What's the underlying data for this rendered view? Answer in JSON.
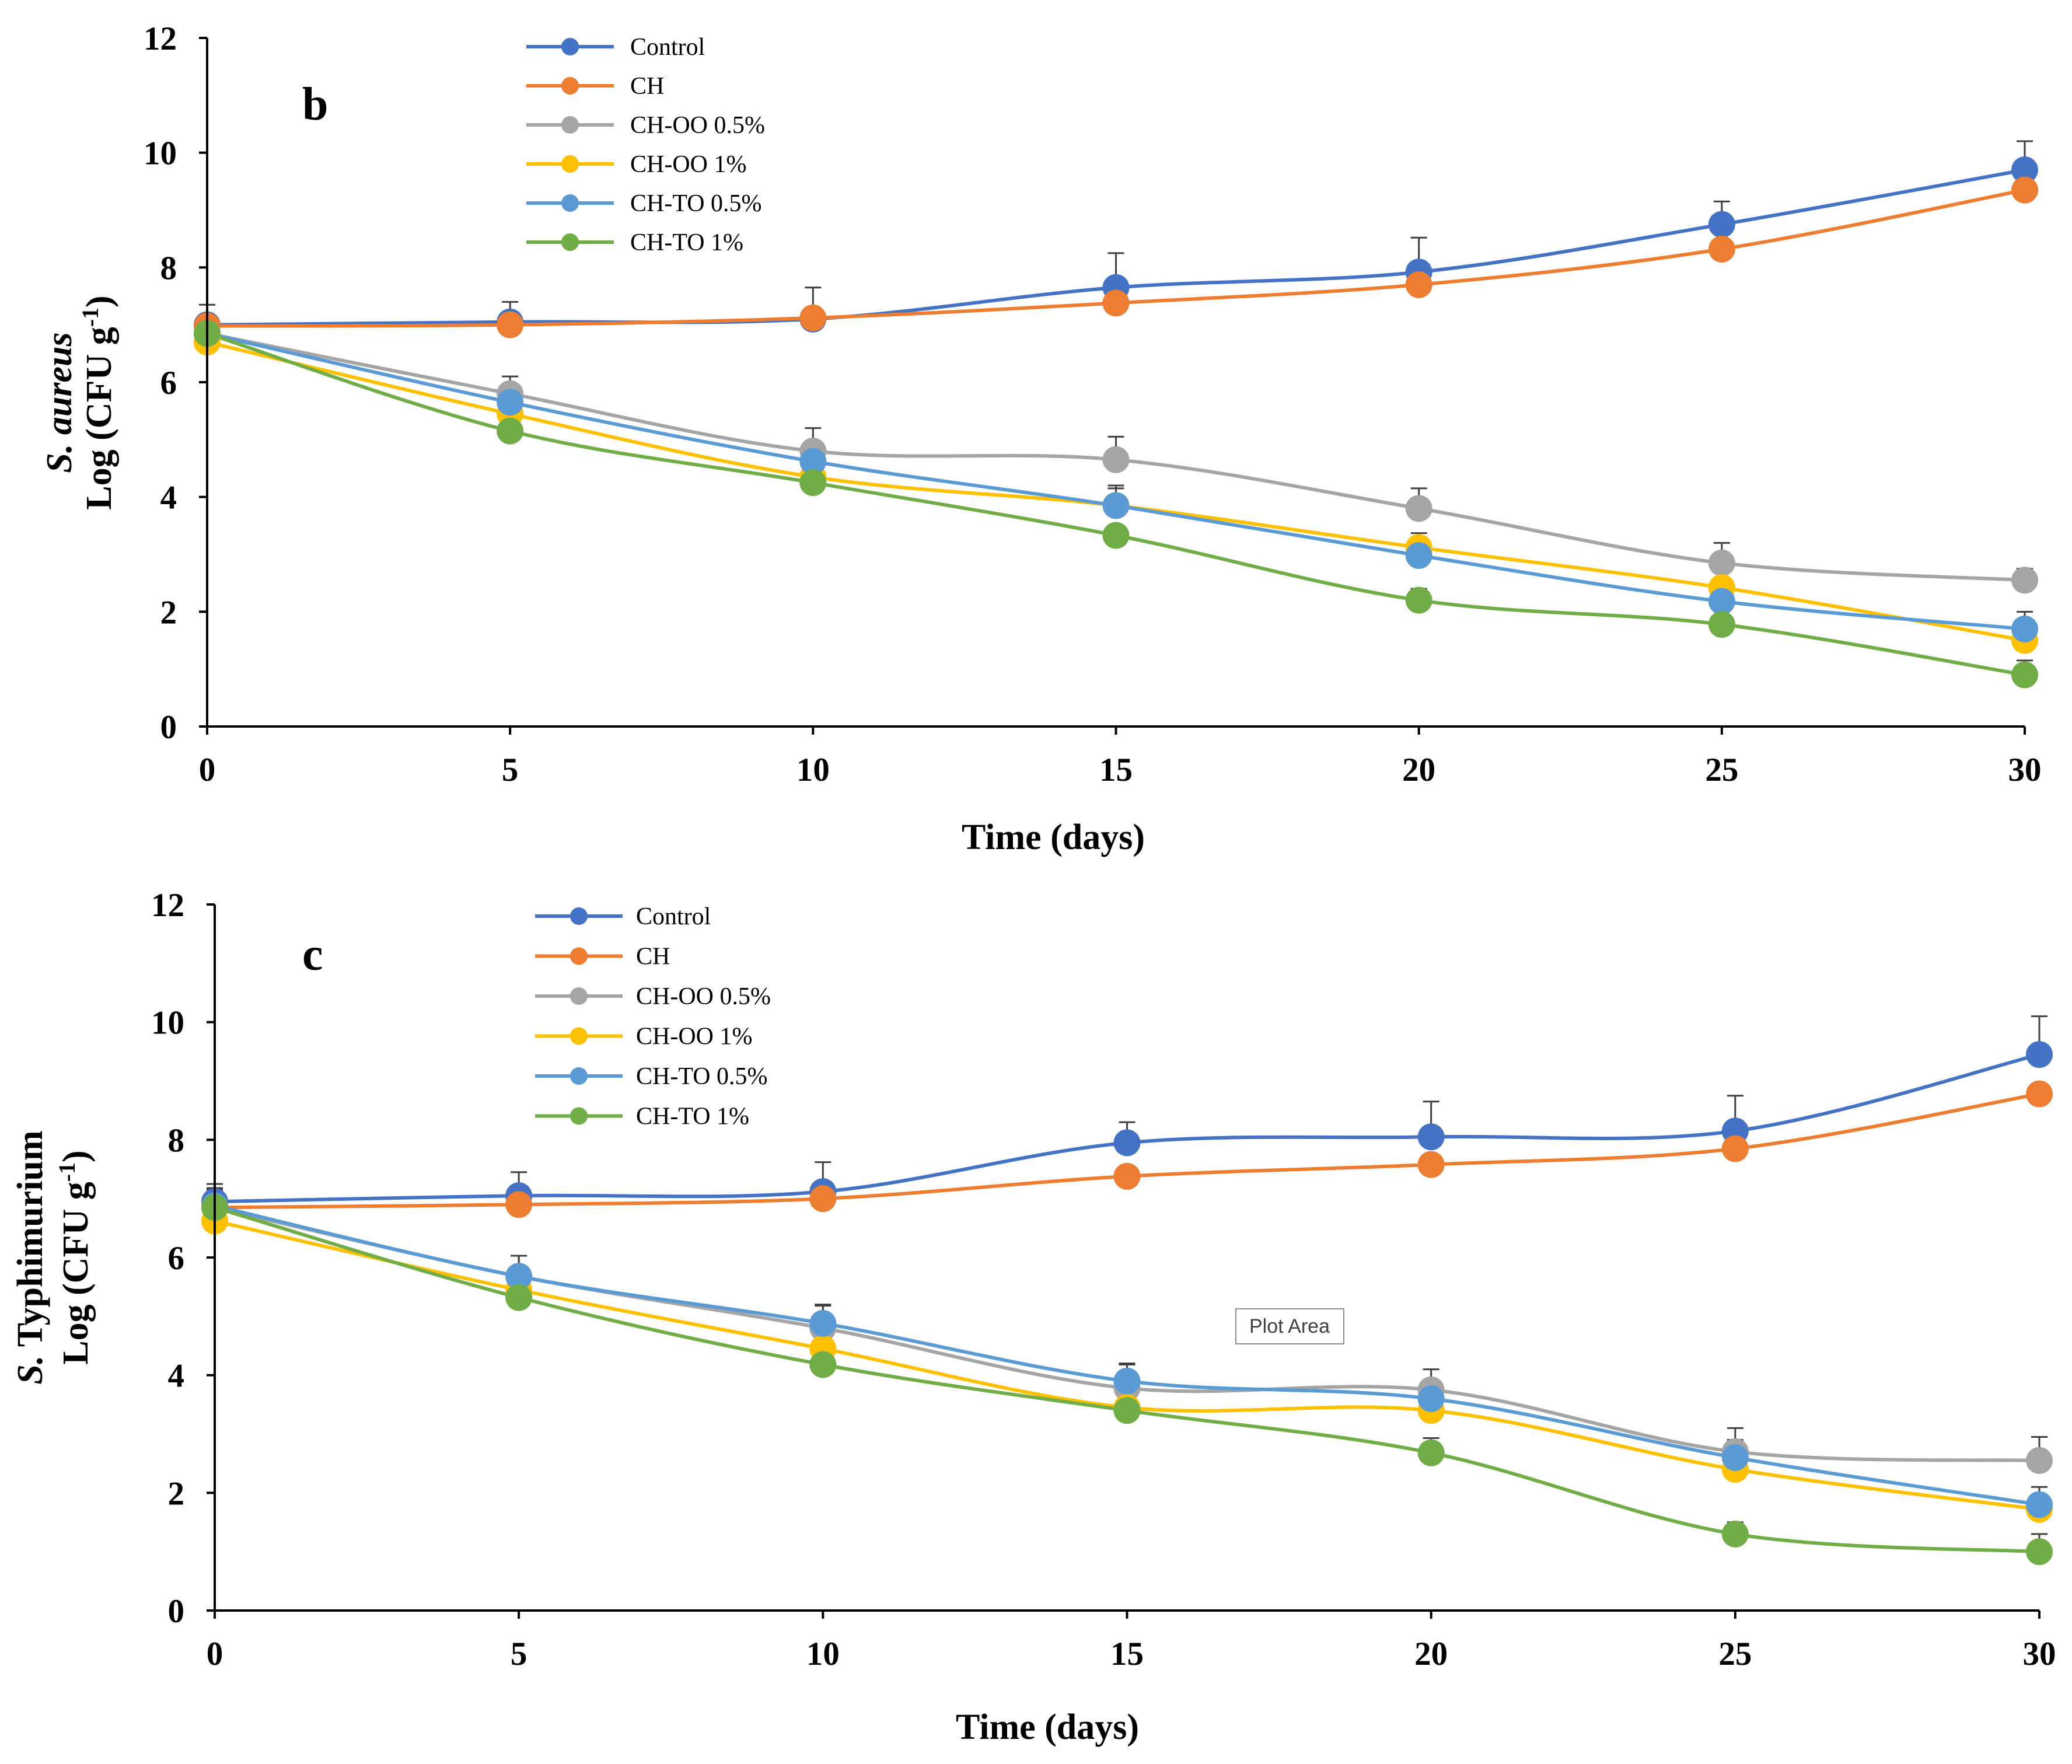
{
  "chart_data": [
    {
      "type": "line",
      "panel_label": "b",
      "title": "",
      "xlabel": "Time (days)",
      "ylabel_organism": "S. aureus",
      "ylabel_organism_italic": "S. aureus",
      "ylabel_organism_plain": "",
      "ylabel_units_main": "Log (CFU g",
      "ylabel_units_sup": "-1",
      "ylabel_units_end": ")",
      "x": [
        0,
        5,
        10,
        15,
        20,
        25,
        30
      ],
      "xticks": [
        "0",
        "5",
        "10",
        "15",
        "20",
        "25",
        "30"
      ],
      "yticks": [
        "0",
        "2",
        "4",
        "6",
        "8",
        "10",
        "12"
      ],
      "xlim": [
        0,
        30
      ],
      "ylim": [
        0,
        12
      ],
      "legend_position": "top-left",
      "series": [
        {
          "name": "Control",
          "color": "#4472C4",
          "values": [
            7.0,
            7.05,
            7.1,
            7.65,
            7.92,
            8.75,
            9.7
          ],
          "errors": [
            0.35,
            0.35,
            0.55,
            0.6,
            0.6,
            0.4,
            0.5
          ]
        },
        {
          "name": "CH",
          "color": "#ED7D31",
          "values": [
            6.98,
            7.0,
            7.12,
            7.38,
            7.7,
            8.32,
            9.35
          ],
          "errors": [
            0,
            0,
            0,
            0,
            0,
            0,
            0
          ]
        },
        {
          "name": "CH-OO 0.5%",
          "color": "#A5A5A5",
          "values": [
            6.85,
            5.8,
            4.8,
            4.65,
            3.8,
            2.85,
            2.55
          ],
          "errors": [
            0.3,
            0.3,
            0.4,
            0.4,
            0.35,
            0.35,
            0.2
          ]
        },
        {
          "name": "CH-OO 1%",
          "color": "#FFC000",
          "values": [
            6.7,
            5.45,
            4.35,
            3.85,
            3.12,
            2.42,
            1.5
          ],
          "errors": [
            0,
            0,
            0,
            0.3,
            0.25,
            0,
            0
          ]
        },
        {
          "name": "CH-TO 0.5%",
          "color": "#5B9BD5",
          "values": [
            6.85,
            5.65,
            4.62,
            3.85,
            2.98,
            2.18,
            1.7
          ],
          "errors": [
            0.3,
            0.3,
            0.3,
            0.35,
            0.3,
            0.3,
            0.3
          ]
        },
        {
          "name": "CH-TO 1%",
          "color": "#70AD47",
          "values": [
            6.85,
            5.15,
            4.25,
            3.33,
            2.2,
            1.78,
            0.9
          ],
          "errors": [
            0,
            0,
            0,
            0,
            0.2,
            0,
            0.25
          ]
        }
      ]
    },
    {
      "type": "line",
      "panel_label": "c",
      "title": "",
      "xlabel": "Time (days)",
      "ylabel_organism": "S. Typhimurium",
      "ylabel_organism_italic": "S.",
      "ylabel_organism_plain": " Typhimurium",
      "ylabel_units_main": "Log (CFU g",
      "ylabel_units_sup": "-1",
      "ylabel_units_end": ")",
      "x": [
        0,
        5,
        10,
        15,
        20,
        25,
        30
      ],
      "xticks": [
        "0",
        "5",
        "10",
        "15",
        "20",
        "25",
        "30"
      ],
      "yticks": [
        "0",
        "2",
        "4",
        "6",
        "8",
        "10",
        "12"
      ],
      "xlim": [
        0,
        30
      ],
      "ylim": [
        0,
        12
      ],
      "legend_position": "top-left",
      "tooltip": "Plot Area",
      "series": [
        {
          "name": "Control",
          "color": "#4472C4",
          "values": [
            6.95,
            7.05,
            7.12,
            7.95,
            8.05,
            8.15,
            9.45
          ],
          "errors": [
            0.3,
            0.4,
            0.5,
            0.35,
            0.6,
            0.6,
            0.65
          ]
        },
        {
          "name": "CH",
          "color": "#ED7D31",
          "values": [
            6.85,
            6.9,
            7.0,
            7.38,
            7.58,
            7.85,
            8.78
          ],
          "errors": [
            0,
            0,
            0,
            0,
            0,
            0,
            0
          ]
        },
        {
          "name": "CH-OO 0.5%",
          "color": "#A5A5A5",
          "values": [
            6.85,
            5.68,
            4.8,
            3.78,
            3.75,
            2.7,
            2.55
          ],
          "errors": [
            0.3,
            0.35,
            0.4,
            0.4,
            0.35,
            0.4,
            0.4
          ]
        },
        {
          "name": "CH-OO 1%",
          "color": "#FFC000",
          "values": [
            6.62,
            5.45,
            4.45,
            3.45,
            3.4,
            2.4,
            1.72
          ],
          "errors": [
            0,
            0,
            0,
            0,
            0,
            0,
            0
          ]
        },
        {
          "name": "CH-TO 0.5%",
          "color": "#5B9BD5",
          "values": [
            6.88,
            5.68,
            4.88,
            3.9,
            3.6,
            2.6,
            1.8
          ],
          "errors": [
            0.3,
            0.35,
            0.3,
            0.3,
            0.3,
            0.3,
            0.3
          ]
        },
        {
          "name": "CH-TO 1%",
          "color": "#70AD47",
          "values": [
            6.85,
            5.32,
            4.18,
            3.4,
            2.68,
            1.3,
            1.0
          ],
          "errors": [
            0,
            0,
            0,
            0,
            0.25,
            0.2,
            0.3
          ]
        }
      ]
    }
  ]
}
